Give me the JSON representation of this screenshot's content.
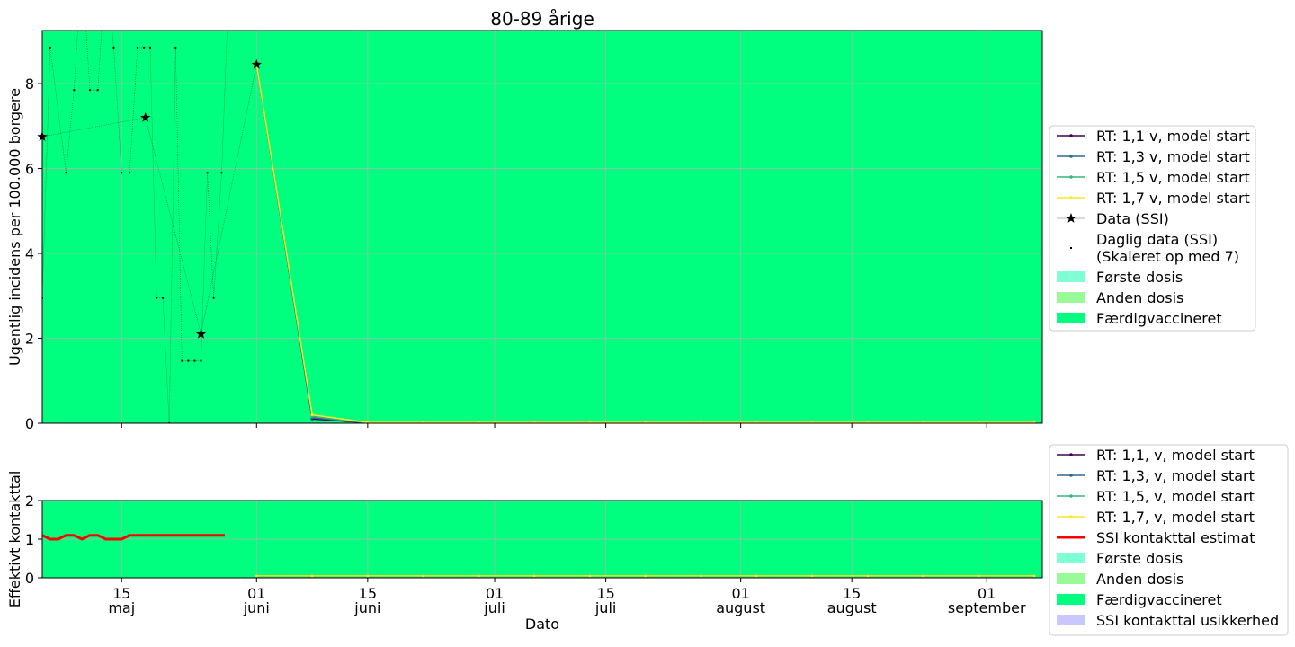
{
  "figure": {
    "title": "80-89 årige",
    "xlabel": "Dato",
    "background": "#ffffff"
  },
  "colors": {
    "first_dose": "#7fffd4",
    "second_dose": "#98fb98",
    "fully_vaccinated": "#00ff7f",
    "ssi_uncertainty": "#c8c8ff",
    "rt_1_1": "#440154",
    "rt_1_3": "#31688e",
    "rt_1_5": "#35b779",
    "rt_1_7": "#fde725",
    "ssi_estimate": "#ff0000",
    "grid": "#b0b0b0"
  },
  "x_ticks": [
    {
      "day": 14,
      "line1": "15",
      "line2": "maj"
    },
    {
      "day": 31,
      "line1": "01",
      "line2": "juni"
    },
    {
      "day": 45,
      "line1": "15",
      "line2": "juni"
    },
    {
      "day": 61,
      "line1": "01",
      "line2": "juli"
    },
    {
      "day": 75,
      "line1": "15",
      "line2": "juli"
    },
    {
      "day": 92,
      "line1": "01",
      "line2": "august"
    },
    {
      "day": 106,
      "line1": "15",
      "line2": "august"
    },
    {
      "day": 123,
      "line1": "01",
      "line2": "september"
    }
  ],
  "legend_top": {
    "items": [
      {
        "label": "RT: 1,1 v, model start",
        "kind": "line",
        "color_key": "rt_1_1"
      },
      {
        "label": "RT: 1,3 v, model start",
        "kind": "line",
        "color_key": "rt_1_3"
      },
      {
        "label": "RT: 1,5 v, model start",
        "kind": "line",
        "color_key": "rt_1_5"
      },
      {
        "label": "RT: 1,7 v, model start",
        "kind": "line",
        "color_key": "rt_1_7"
      },
      {
        "label": "Data (SSI)",
        "kind": "star"
      },
      {
        "label": "Daglig data (SSI)",
        "label2": "(Skaleret op med 7)",
        "kind": "dot"
      },
      {
        "label": "Første dosis",
        "kind": "patch",
        "color_key": "first_dose"
      },
      {
        "label": "Anden dosis",
        "kind": "patch",
        "color_key": "second_dose"
      },
      {
        "label": "Færdigvaccineret",
        "kind": "patch",
        "color_key": "fully_vaccinated"
      }
    ]
  },
  "legend_bottom": {
    "items": [
      {
        "label": "RT: 1,1, v, model start",
        "kind": "line",
        "color_key": "rt_1_1"
      },
      {
        "label": "RT: 1,3, v, model start",
        "kind": "line",
        "color_key": "rt_1_3"
      },
      {
        "label": "RT: 1,5, v, model start",
        "kind": "line",
        "color_key": "rt_1_5"
      },
      {
        "label": "RT: 1,7, v, model start",
        "kind": "line",
        "color_key": "rt_1_7"
      },
      {
        "label": "SSI kontakttal estimat",
        "kind": "thickline",
        "color_key": "ssi_estimate"
      },
      {
        "label": "Første dosis",
        "kind": "patch",
        "color_key": "first_dose"
      },
      {
        "label": "Anden dosis",
        "kind": "patch",
        "color_key": "second_dose"
      },
      {
        "label": "Færdigvaccineret",
        "kind": "patch",
        "color_key": "fully_vaccinated"
      },
      {
        "label": "SSI kontakttal usikkerhed",
        "kind": "patch",
        "color_key": "ssi_uncertainty"
      }
    ]
  },
  "chart_data": [
    {
      "type": "line",
      "title": "80-89 årige",
      "xlabel": "",
      "ylabel": "Ugentlig incidens per 100.000 borgere",
      "x_unit": "day (0 = 1 maj)",
      "xlim": [
        4,
        130
      ],
      "ylim": [
        0,
        9.25
      ],
      "yticks": [
        0,
        2,
        4,
        6,
        8
      ],
      "grid": true,
      "legend_position": "right",
      "background_fill": "fully_vaccinated",
      "weekly_data": {
        "name": "Data (SSI)",
        "points": [
          [
            4,
            6.75
          ],
          [
            17,
            7.2
          ],
          [
            24,
            2.1
          ],
          [
            31,
            8.45
          ]
        ]
      },
      "daily_data": {
        "name": "Daglig data (SSI)",
        "points": [
          [
            4,
            2.95
          ],
          [
            5,
            8.85
          ],
          [
            7,
            5.9
          ],
          [
            8,
            7.85
          ],
          [
            9,
            10.8
          ],
          [
            10,
            7.85
          ],
          [
            11,
            7.85
          ],
          [
            12,
            10.8
          ],
          [
            13,
            8.85
          ],
          [
            14,
            5.9
          ],
          [
            15,
            5.9
          ],
          [
            16,
            8.85
          ],
          [
            16.8,
            8.85
          ],
          [
            17.6,
            8.85
          ],
          [
            18.4,
            2.95
          ],
          [
            19.2,
            2.95
          ],
          [
            20,
            0
          ],
          [
            20.8,
            8.85
          ],
          [
            21.6,
            1.47
          ],
          [
            22.4,
            1.47
          ],
          [
            23.2,
            1.47
          ],
          [
            24,
            1.47
          ],
          [
            24.8,
            5.9
          ],
          [
            25.6,
            2.95
          ],
          [
            26.6,
            5.9
          ],
          [
            27.6,
            10.8
          ]
        ]
      },
      "series": [
        {
          "name": "RT: 1,1 v, model start",
          "color_key": "rt_1_1",
          "x": [
            31,
            38,
            45,
            52,
            59,
            66,
            73,
            80,
            87,
            94,
            101,
            108,
            115,
            122,
            129
          ],
          "values": [
            8.45,
            0.1,
            0.01,
            0.01,
            0.01,
            0.01,
            0.01,
            0.01,
            0.01,
            0.01,
            0.01,
            0.01,
            0.01,
            0.01,
            0.01
          ]
        },
        {
          "name": "RT: 1,3 v, model start",
          "color_key": "rt_1_3",
          "x": [
            31,
            38,
            45,
            52,
            59,
            66,
            73,
            80,
            87,
            94,
            101,
            108,
            115,
            122,
            129
          ],
          "values": [
            8.45,
            0.13,
            0.01,
            0.01,
            0.01,
            0.01,
            0.01,
            0.01,
            0.01,
            0.01,
            0.01,
            0.01,
            0.01,
            0.01,
            0.01
          ]
        },
        {
          "name": "RT: 1,5 v, model start",
          "color_key": "rt_1_5",
          "x": [
            31,
            38,
            45,
            52,
            59,
            66,
            73,
            80,
            87,
            94,
            101,
            108,
            115,
            122,
            129
          ],
          "values": [
            8.45,
            0.16,
            0.01,
            0.01,
            0.01,
            0.01,
            0.01,
            0.01,
            0.01,
            0.01,
            0.01,
            0.01,
            0.01,
            0.01,
            0.01
          ]
        },
        {
          "name": "RT: 1,7 v, model start",
          "color_key": "rt_1_7",
          "x": [
            31,
            38,
            45,
            52,
            59,
            66,
            73,
            80,
            87,
            94,
            101,
            108,
            115,
            122,
            129
          ],
          "values": [
            8.45,
            0.2,
            0.02,
            0.02,
            0.02,
            0.02,
            0.02,
            0.02,
            0.02,
            0.02,
            0.02,
            0.02,
            0.02,
            0.02,
            0.02
          ]
        }
      ]
    },
    {
      "type": "line",
      "xlabel": "Dato",
      "ylabel": "Effektivt kontakttal",
      "x_unit": "day (0 = 1 maj)",
      "xlim": [
        4,
        130
      ],
      "ylim": [
        0,
        2
      ],
      "yticks": [
        0,
        1,
        2
      ],
      "grid": true,
      "legend_position": "right",
      "background_fill": "fully_vaccinated",
      "ssi_estimate": {
        "name": "SSI kontakttal estimat",
        "x": [
          4,
          5,
          6,
          7,
          8,
          9,
          10,
          11,
          12,
          13,
          14,
          15,
          16,
          17,
          18,
          19,
          20,
          21,
          22,
          23,
          24,
          25,
          26,
          27
        ],
        "values": [
          1.1,
          1.0,
          1.0,
          1.1,
          1.1,
          1.0,
          1.1,
          1.1,
          1.0,
          1.0,
          1.0,
          1.1,
          1.1,
          1.1,
          1.1,
          1.1,
          1.1,
          1.1,
          1.1,
          1.1,
          1.1,
          1.1,
          1.1,
          1.1
        ]
      },
      "series": [
        {
          "name": "RT: 1,1, v, model start",
          "color_key": "rt_1_1",
          "x": [
            31,
            38,
            45,
            52,
            59,
            66,
            73,
            80,
            87,
            94,
            101,
            108,
            115,
            122,
            129
          ],
          "values": [
            0.05,
            0.05,
            0.05,
            0.05,
            0.05,
            0.05,
            0.05,
            0.05,
            0.05,
            0.05,
            0.05,
            0.05,
            0.05,
            0.05,
            0.05
          ]
        },
        {
          "name": "RT: 1,3, v, model start",
          "color_key": "rt_1_3",
          "x": [
            31,
            38,
            45,
            52,
            59,
            66,
            73,
            80,
            87,
            94,
            101,
            108,
            115,
            122,
            129
          ],
          "values": [
            0.05,
            0.05,
            0.05,
            0.05,
            0.05,
            0.05,
            0.05,
            0.05,
            0.05,
            0.05,
            0.05,
            0.05,
            0.05,
            0.05,
            0.05
          ]
        },
        {
          "name": "RT: 1,5, v, model start",
          "color_key": "rt_1_5",
          "x": [
            31,
            38,
            45,
            52,
            59,
            66,
            73,
            80,
            87,
            94,
            101,
            108,
            115,
            122,
            129
          ],
          "values": [
            0.05,
            0.05,
            0.05,
            0.05,
            0.05,
            0.05,
            0.05,
            0.05,
            0.05,
            0.05,
            0.05,
            0.05,
            0.05,
            0.05,
            0.05
          ]
        },
        {
          "name": "RT: 1,7, v, model start",
          "color_key": "rt_1_7",
          "x": [
            31,
            38,
            45,
            52,
            59,
            66,
            73,
            80,
            87,
            94,
            101,
            108,
            115,
            122,
            129
          ],
          "values": [
            0.05,
            0.05,
            0.05,
            0.05,
            0.05,
            0.05,
            0.05,
            0.05,
            0.05,
            0.05,
            0.05,
            0.05,
            0.05,
            0.05,
            0.05
          ]
        }
      ]
    }
  ]
}
